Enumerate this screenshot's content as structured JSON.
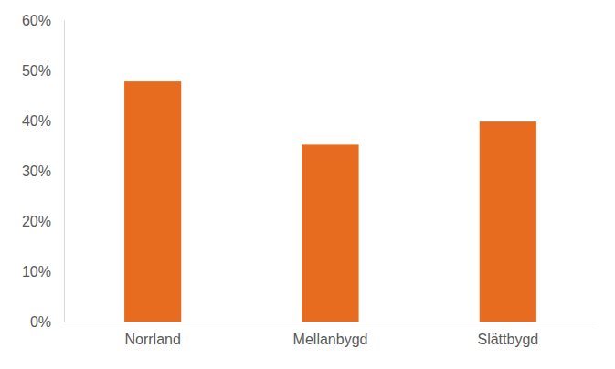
{
  "chart_data": {
    "type": "bar",
    "categories": [
      "Norrland",
      "Mellanbygd",
      "Slättbygd"
    ],
    "values": [
      47.8,
      35.2,
      39.8
    ],
    "color": "#e86c1f",
    "ylim": [
      0,
      60
    ],
    "yticks": [
      {
        "value": 0,
        "label": "0%"
      },
      {
        "value": 10,
        "label": "10%"
      },
      {
        "value": 20,
        "label": "20%"
      },
      {
        "value": 30,
        "label": "30%"
      },
      {
        "value": 40,
        "label": "40%"
      },
      {
        "value": 50,
        "label": "50%"
      },
      {
        "value": 60,
        "label": "60%"
      }
    ],
    "grid": false
  }
}
